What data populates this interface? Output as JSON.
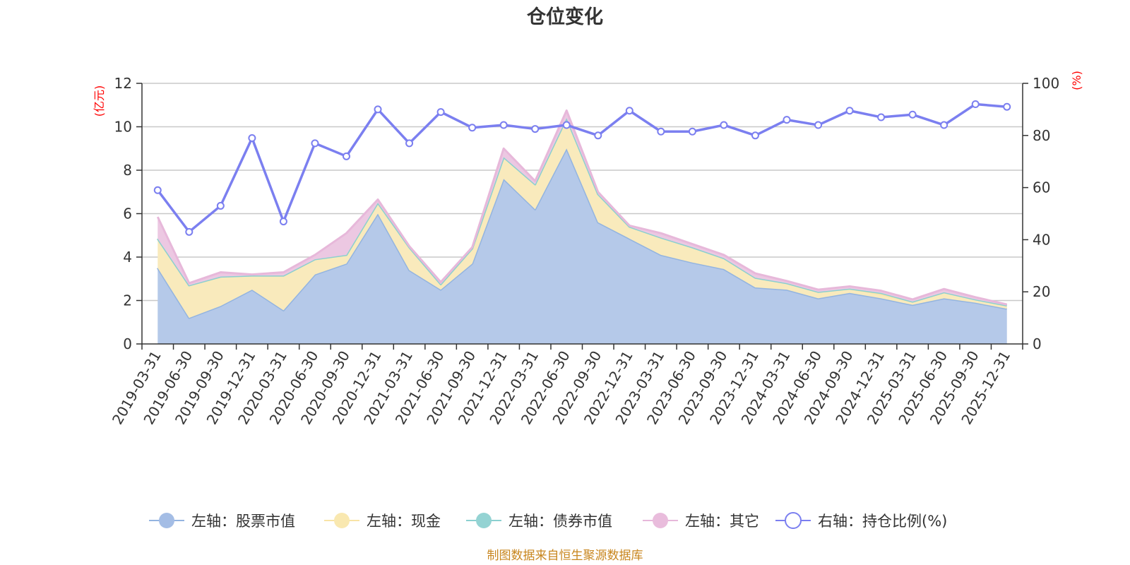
{
  "chart_data": {
    "type": "area",
    "title": "仓位变化",
    "left_axis": {
      "name": "(亿元)",
      "min": 0,
      "max": 12,
      "ticks": [
        0,
        2,
        4,
        6,
        8,
        10,
        12
      ]
    },
    "right_axis": {
      "name": "(%)",
      "min": 0,
      "max": 100,
      "ticks": [
        0,
        20,
        40,
        60,
        80,
        100
      ]
    },
    "axis_name_color": "#ff0000",
    "grid": true,
    "categories": [
      "2019-03-31",
      "2019-06-30",
      "2019-09-30",
      "2019-12-31",
      "2020-03-31",
      "2020-06-30",
      "2020-09-30",
      "2020-12-31",
      "2021-03-31",
      "2021-06-30",
      "2021-09-30",
      "2021-12-31",
      "2022-03-31",
      "2022-06-30",
      "2022-09-30",
      "2022-12-31",
      "2023-03-31",
      "2023-06-30",
      "2023-09-30",
      "2023-12-31",
      "2024-03-31",
      "2024-06-30",
      "2024-09-30",
      "2024-12-31",
      "2025-03-31",
      "2025-06-30",
      "2025-09-30",
      "2025-12-31"
    ],
    "series": [
      {
        "name": "左轴：股票市值",
        "axis": "left",
        "stacked": true,
        "fill": "#b5c9e9",
        "line": "#93b4e0",
        "values": [
          3.5,
          1.2,
          1.75,
          2.5,
          1.55,
          3.2,
          3.7,
          6.0,
          3.4,
          2.5,
          3.7,
          7.6,
          6.2,
          9.0,
          5.6,
          4.85,
          4.1,
          3.75,
          3.45,
          2.6,
          2.5,
          2.1,
          2.35,
          2.1,
          1.8,
          2.1,
          1.9,
          1.62
        ]
      },
      {
        "name": "左轴：现金",
        "axis": "left",
        "stacked": true,
        "fill": "#f9eabc",
        "line": "#f8e4a6",
        "values": [
          1.35,
          1.5,
          1.35,
          0.65,
          1.6,
          0.7,
          0.4,
          0.5,
          1.05,
          0.25,
          0.7,
          1.0,
          1.15,
          1.4,
          1.3,
          0.55,
          0.8,
          0.7,
          0.5,
          0.45,
          0.3,
          0.3,
          0.2,
          0.2,
          0.15,
          0.28,
          0.15,
          0.15
        ]
      },
      {
        "name": "左轴：债券市值",
        "axis": "left",
        "stacked": true,
        "fill": "#a6dbdb",
        "line": "#8bd0d0",
        "values": [
          0,
          0,
          0,
          0,
          0,
          0,
          0,
          0,
          0,
          0,
          0,
          0,
          0,
          0,
          0,
          0,
          0,
          0,
          0,
          0,
          0,
          0,
          0,
          0.05,
          0,
          0,
          0,
          0
        ]
      },
      {
        "name": "左轴：其它",
        "axis": "left",
        "stacked": true,
        "fill": "#ecc8e2",
        "line": "#e7b8da",
        "values": [
          1.0,
          0.1,
          0.2,
          0.05,
          0.15,
          0.2,
          1.0,
          0.15,
          0.05,
          0.1,
          0.05,
          0.4,
          0.15,
          0.35,
          0.1,
          0.05,
          0.2,
          0.15,
          0.15,
          0.2,
          0.1,
          0.1,
          0.1,
          0.1,
          0.1,
          0.15,
          0.1,
          0.05
        ]
      },
      {
        "name": "右轴：持仓比例(%)",
        "axis": "right",
        "type": "line",
        "line": "#7b7ff0",
        "values": [
          59,
          43,
          53,
          79,
          47,
          77,
          72,
          90,
          77,
          89,
          83,
          84,
          82.5,
          84,
          80,
          89.5,
          81.5,
          81.5,
          84,
          80,
          86,
          84,
          89.5,
          87,
          88,
          84,
          92,
          91
        ]
      }
    ],
    "legend_position": "bottom"
  },
  "legend": {
    "items": [
      {
        "label": "左轴：股票市值",
        "color": "#a4bde5",
        "line": "#93b4e0",
        "hollow": false
      },
      {
        "label": "左轴：现金",
        "color": "#f9e8b0",
        "line": "#f8e4a6",
        "hollow": false
      },
      {
        "label": "左轴：债券市值",
        "color": "#94d3d3",
        "line": "#8bd0d0",
        "hollow": false
      },
      {
        "label": "左轴：其它",
        "color": "#e9bcdc",
        "line": "#e7b8da",
        "hollow": false
      },
      {
        "label": "右轴：持仓比例(%)",
        "color": "#7b7ff0",
        "line": "#7b7ff0",
        "hollow": true
      }
    ]
  },
  "source": {
    "text": "制图数据来自恒生聚源数据库",
    "color": "#c8861e"
  }
}
